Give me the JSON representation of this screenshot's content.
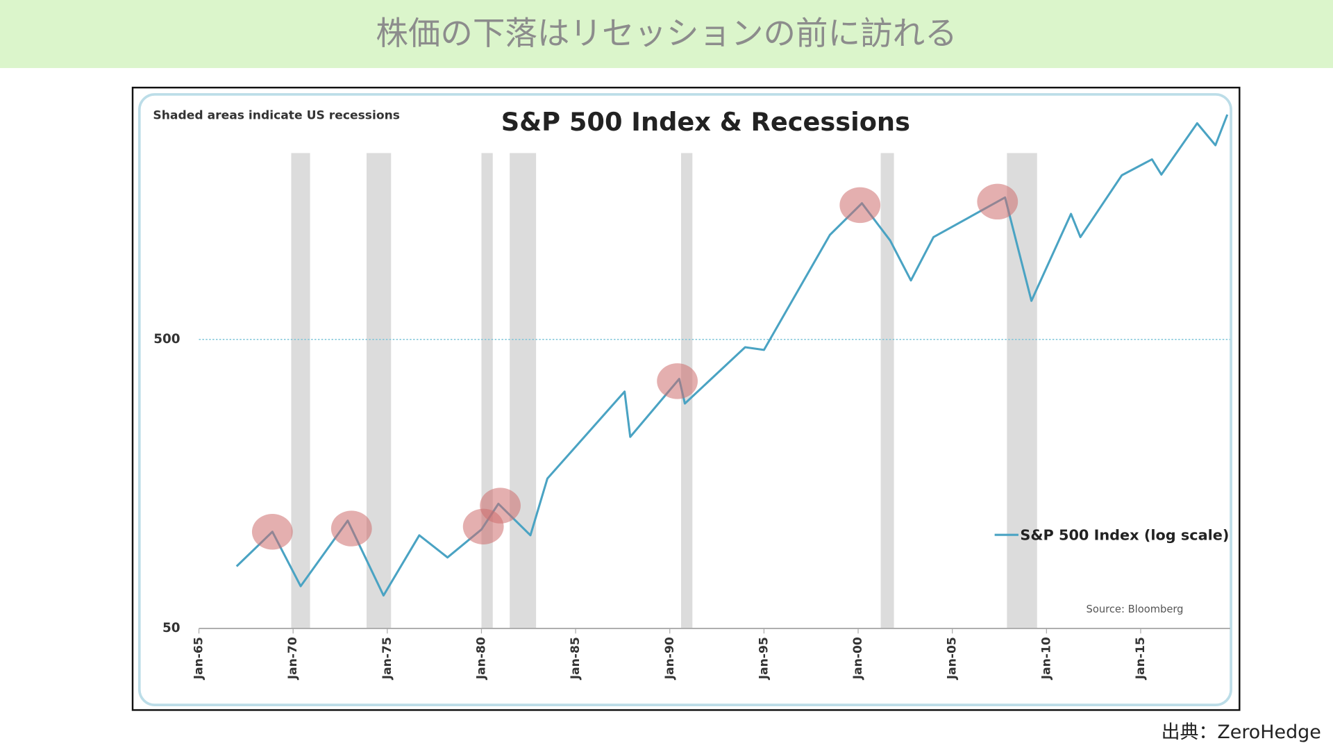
{
  "slide_title": "株価の下落はリセッションの前に訪れる",
  "source_credit": "出典：ZeroHedge",
  "chart_data": {
    "type": "line",
    "title": "S&P 500 Index & Recessions",
    "note": "Shaded areas indicate US recessions",
    "source": "Source: Bloomberg",
    "log_scale": true,
    "legend": "right",
    "x": [
      1967.0,
      1968.9,
      1970.4,
      1972.9,
      1974.8,
      1976.7,
      1978.2,
      1980.0,
      1980.9,
      1982.6,
      1983.5,
      1987.6,
      1987.9,
      1990.5,
      1990.8,
      1994.0,
      1995.0,
      1998.5,
      2000.2,
      2001.7,
      2002.8,
      2004.0,
      2007.8,
      2009.2,
      2011.3,
      2011.8,
      2014.0,
      2015.6,
      2016.1,
      2018.0,
      2018.97,
      2019.6
    ],
    "series": [
      {
        "name": "S&P 500 Index (log scale)",
        "color": "#4aa3c3",
        "values": [
          82,
          108,
          70,
          118,
          65,
          105,
          88,
          110,
          135,
          105,
          165,
          330,
          230,
          365,
          300,
          470,
          460,
          1150,
          1480,
          1100,
          800,
          1130,
          1550,
          680,
          1360,
          1130,
          1850,
          2100,
          1860,
          2800,
          2350,
          3000
        ]
      }
    ],
    "recessions": [
      [
        1969.9,
        1970.9
      ],
      [
        1973.9,
        1975.2
      ],
      [
        1980.0,
        1980.6
      ],
      [
        1981.5,
        1982.9
      ],
      [
        1990.6,
        1991.2
      ],
      [
        2001.2,
        2001.9
      ],
      [
        2007.9,
        2009.5
      ]
    ],
    "highlights": [
      1968.9,
      1973.1,
      1980.1,
      1981.0,
      1990.4,
      2000.1,
      2007.4
    ],
    "xlim": [
      1965,
      2019.75
    ],
    "xticks": [
      {
        "value": 1965,
        "label": "Jan-65"
      },
      {
        "value": 1970,
        "label": "Jan-70"
      },
      {
        "value": 1975,
        "label": "Jan-75"
      },
      {
        "value": 1980,
        "label": "Jan-80"
      },
      {
        "value": 1985,
        "label": "Jan-85"
      },
      {
        "value": 1990,
        "label": "Jan-90"
      },
      {
        "value": 1995,
        "label": "Jan-95"
      },
      {
        "value": 2000,
        "label": "Jan-00"
      },
      {
        "value": 2005,
        "label": "Jan-05"
      },
      {
        "value": 2010,
        "label": "Jan-10"
      },
      {
        "value": 2015,
        "label": "Jan-15"
      }
    ],
    "ylim": [
      50,
      3500
    ],
    "yticks": [
      50,
      500
    ]
  }
}
